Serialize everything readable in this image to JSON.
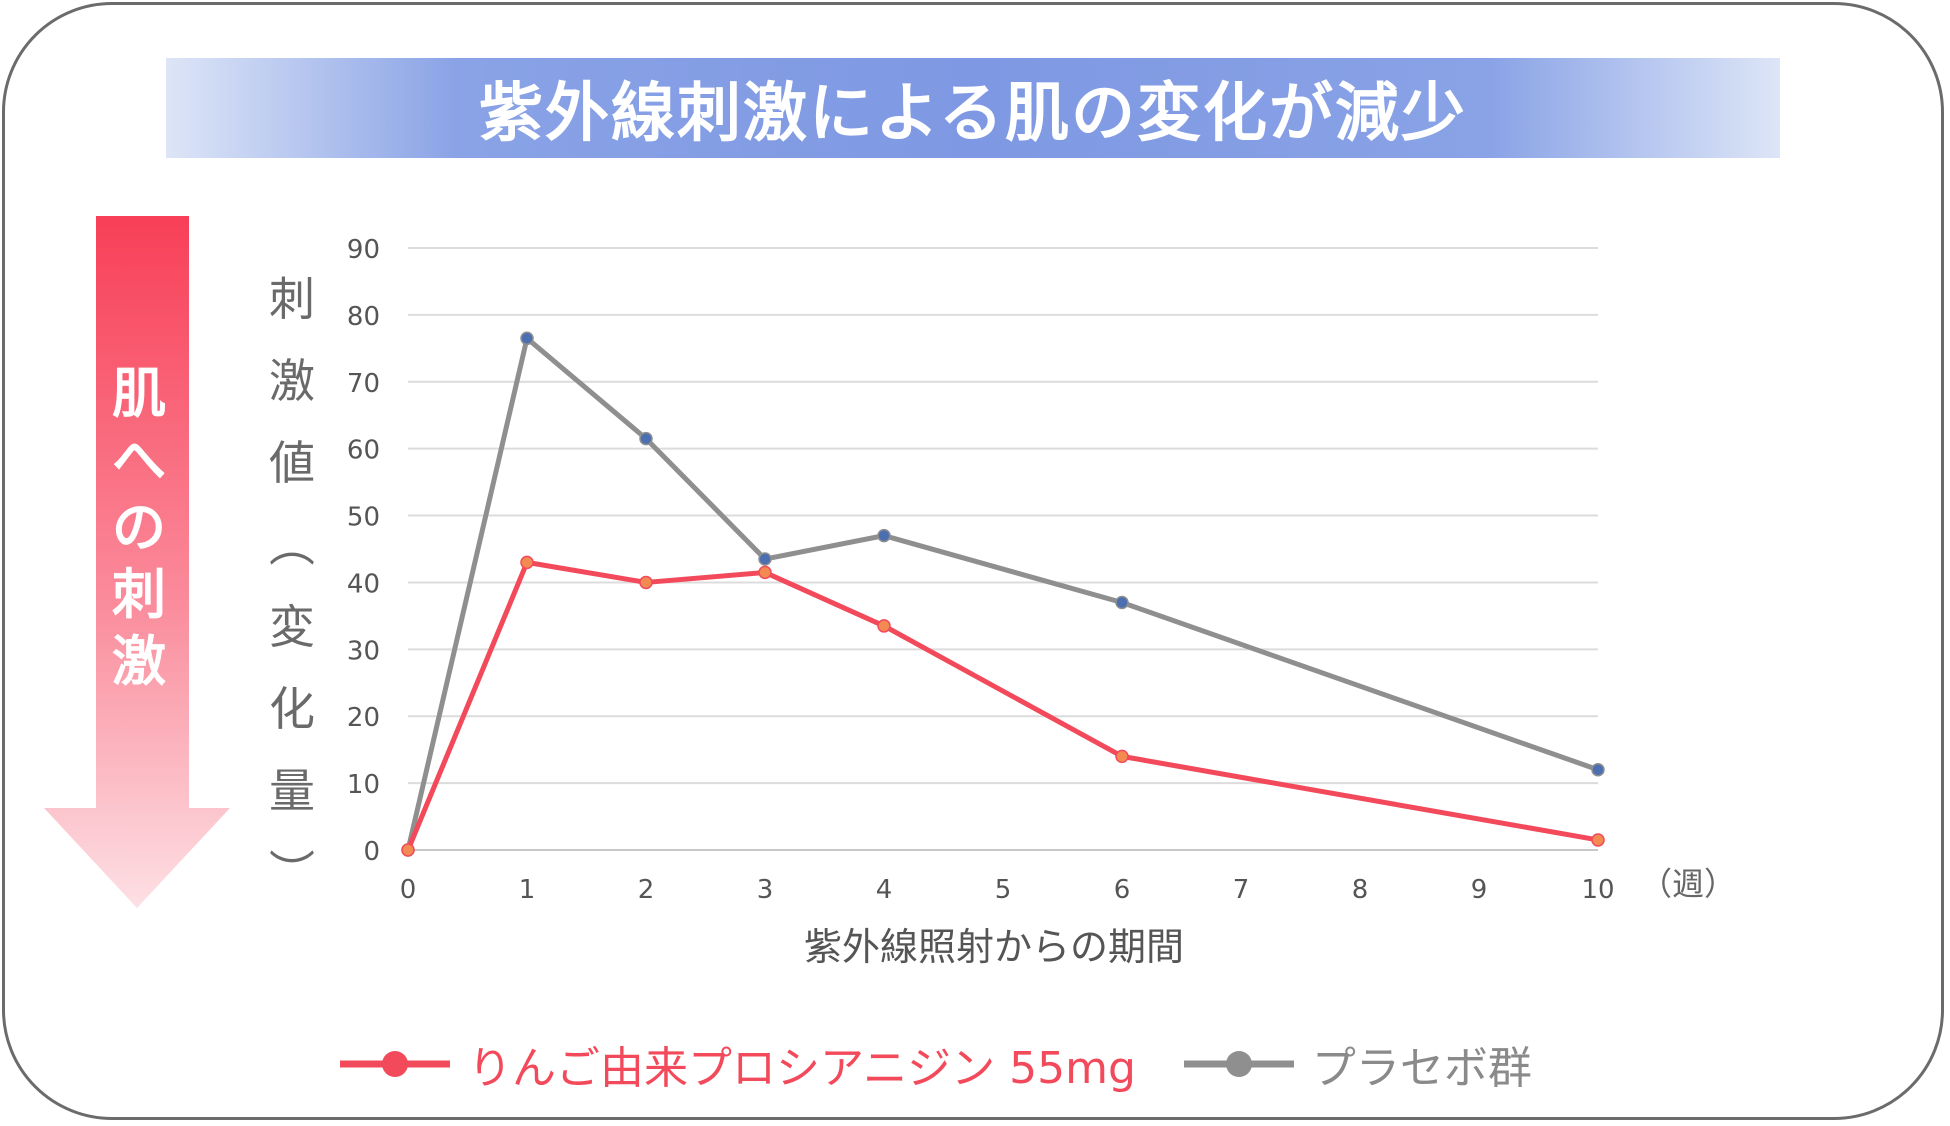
{
  "colors": {
    "red": "#f24a5b",
    "gray": "#8f8f8f",
    "point_blue": "#4b6fb0",
    "point_orange": "#f28a52"
  },
  "banner": {
    "title": "紫外線刺激による肌の変化が減少"
  },
  "side": {
    "text": "肌への刺激"
  },
  "chart_data": {
    "type": "line",
    "title": "紫外線刺激による肌の変化が減少",
    "ylabel": "刺激値（変化量）",
    "xlabel": "紫外線照射からの期間",
    "x_unit": "（週）",
    "ylim": [
      0,
      90
    ],
    "y_ticks": [
      0,
      10,
      20,
      30,
      40,
      50,
      60,
      70,
      80,
      90
    ],
    "x_ticks": [
      0,
      1,
      2,
      3,
      4,
      5,
      6,
      7,
      8,
      9,
      10
    ],
    "grid": true,
    "legend": "bottom",
    "series": [
      {
        "name": "りんご由来プロシアニジン 55mg",
        "color": "#f24a5b",
        "x": [
          0,
          1,
          2,
          3,
          4,
          6,
          10
        ],
        "y": [
          0,
          43,
          40,
          41.5,
          33.5,
          14,
          1.5
        ]
      },
      {
        "name": "プラセボ群",
        "color": "#8f8f8f",
        "x": [
          0,
          1,
          2,
          3,
          4,
          6,
          10
        ],
        "y": [
          0,
          76.5,
          61.5,
          43.5,
          47,
          37,
          12
        ]
      }
    ]
  }
}
